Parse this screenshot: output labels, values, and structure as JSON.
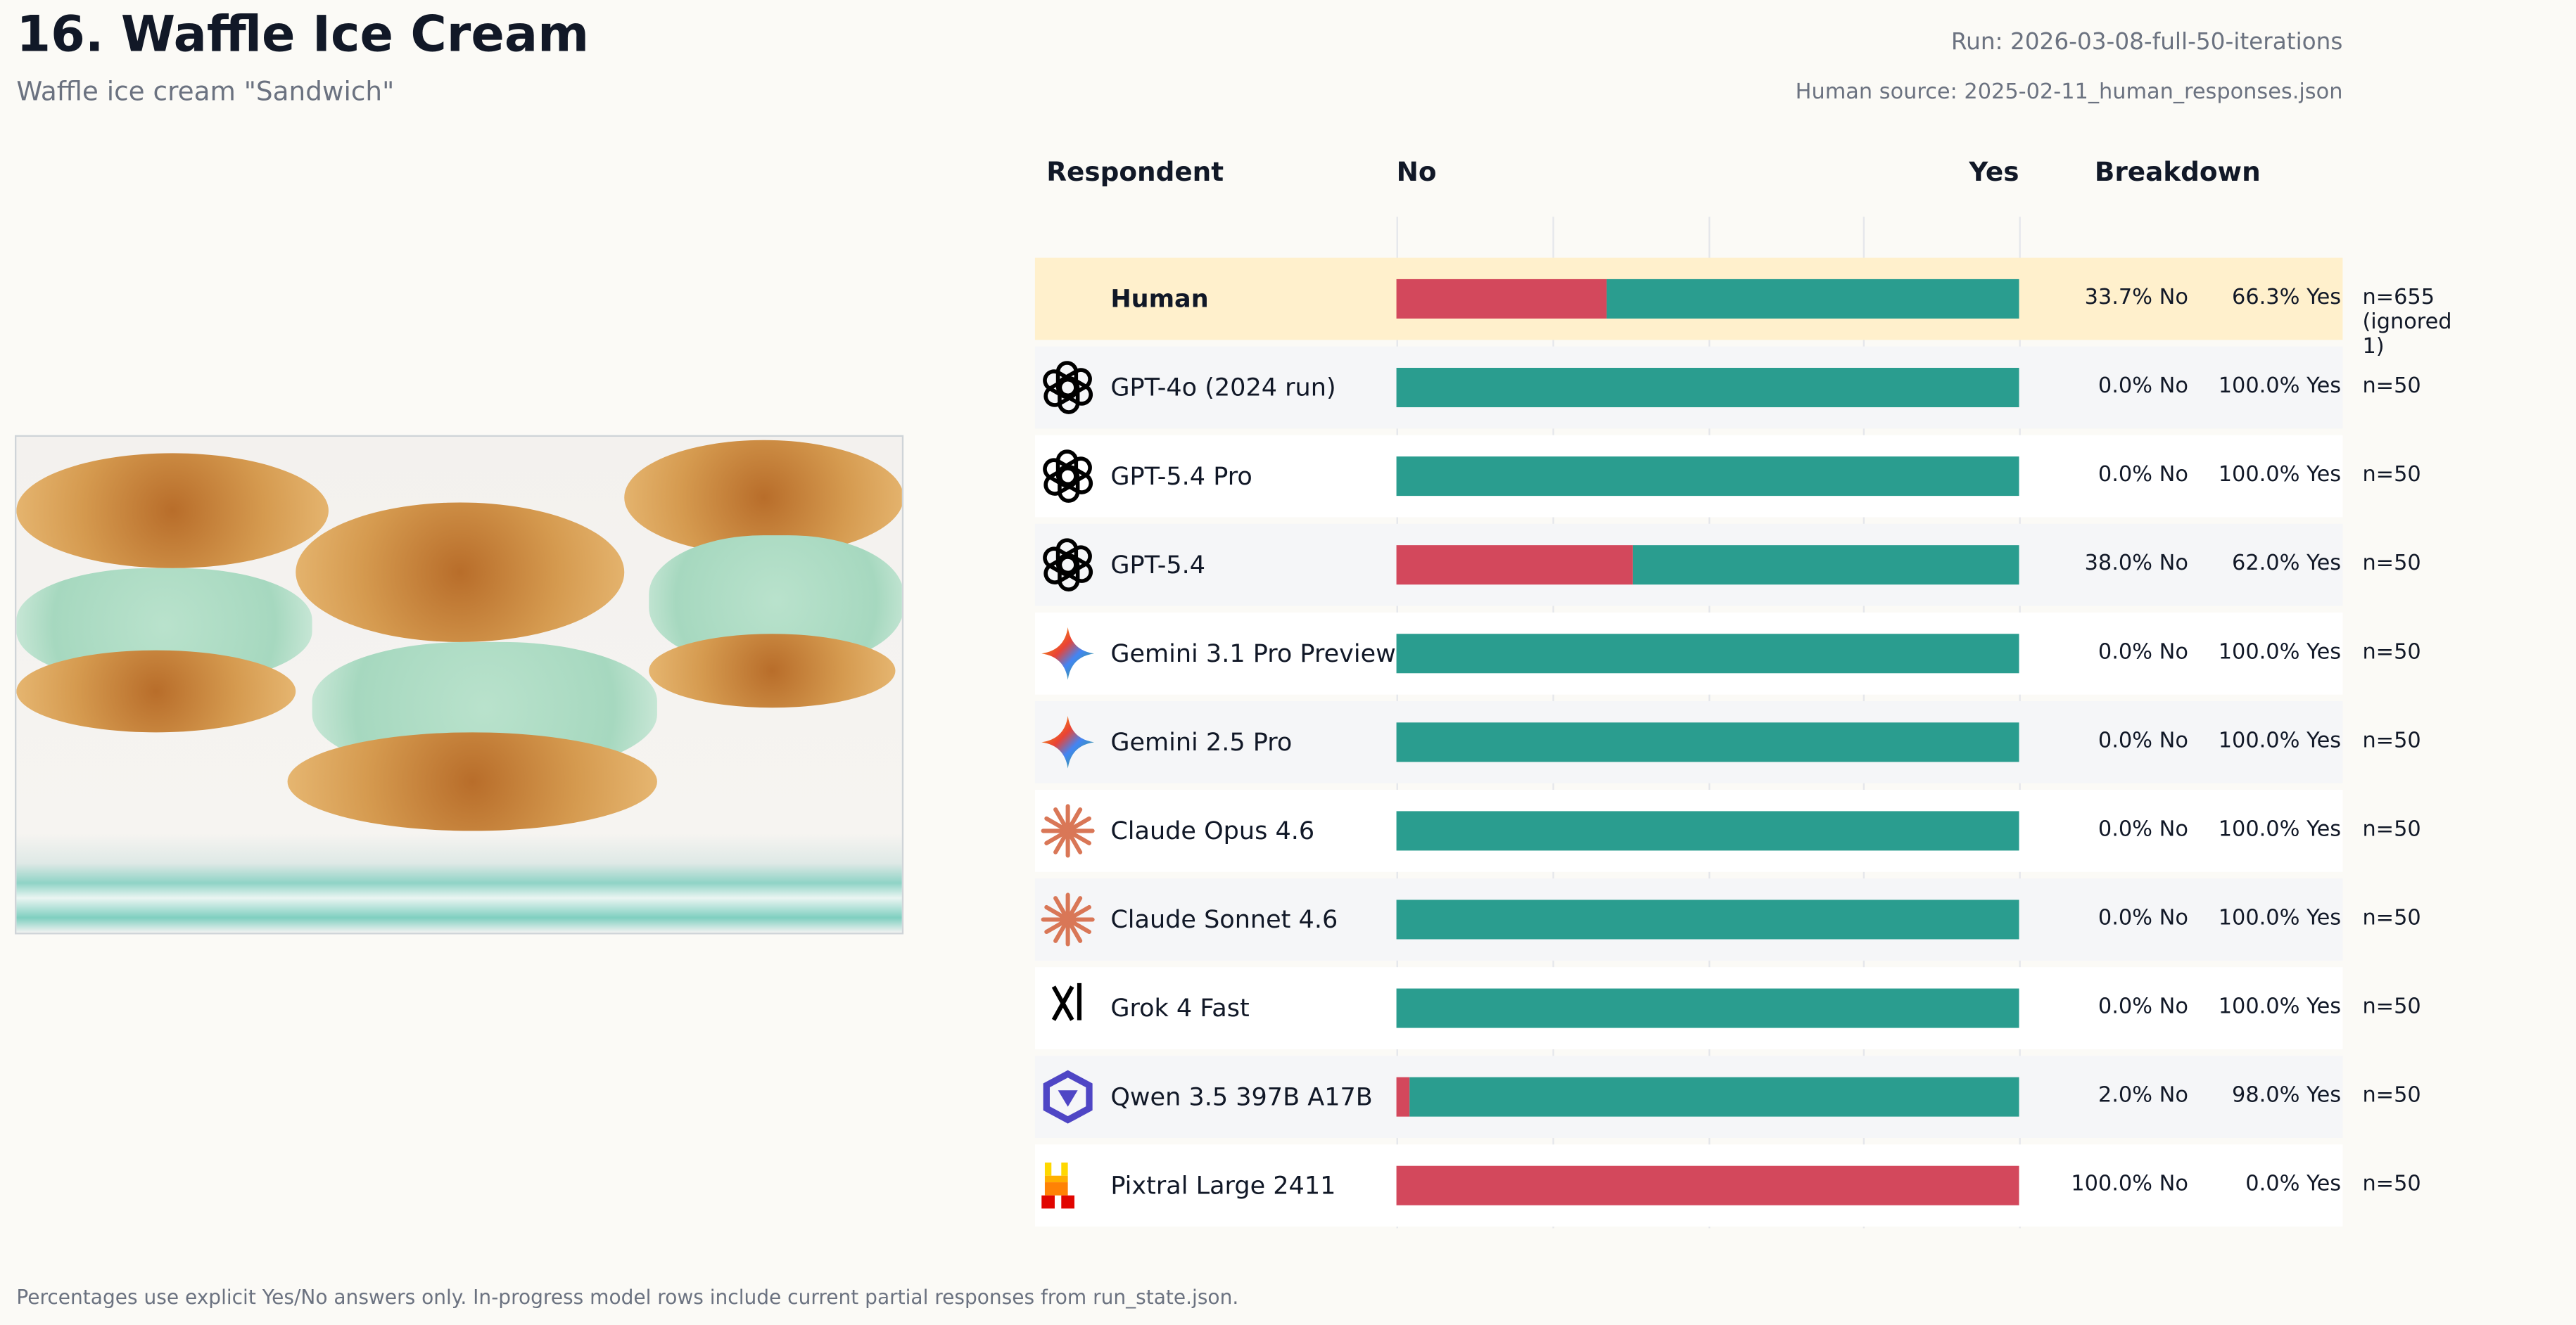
{
  "header": {
    "title": "16. Waffle Ice Cream",
    "subtitle": "Waffle ice cream  \"Sandwich\"",
    "run": "Run: 2026-03-08-full-50-iterations",
    "human_source": "Human source: 2025-02-11_human_responses.json"
  },
  "columns": {
    "respondent": "Respondent",
    "no": "No",
    "yes": "Yes",
    "breakdown": "Breakdown"
  },
  "colors": {
    "no": "#d3485c",
    "yes": "#2a9d8f",
    "human_row": "#fff0cc"
  },
  "chart_data": {
    "type": "bar",
    "stacked": true,
    "orientation": "horizontal",
    "xlim": [
      0,
      100
    ],
    "grid": true,
    "categories": [
      "Human",
      "GPT-4o (2024 run)",
      "GPT-5.4 Pro",
      "GPT-5.4",
      "Gemini 3.1 Pro Preview",
      "Gemini 2.5 Pro",
      "Claude Opus 4.6",
      "Claude Sonnet 4.6",
      "Grok 4 Fast",
      "Qwen 3.5 397B A17B",
      "Pixtral Large 2411"
    ],
    "series": [
      {
        "name": "No",
        "values": [
          33.7,
          0,
          0,
          38,
          0,
          0,
          0,
          0,
          0,
          2,
          100
        ]
      },
      {
        "name": "Yes",
        "values": [
          66.3,
          100,
          100,
          62,
          100,
          100,
          100,
          100,
          100,
          98,
          0
        ]
      }
    ]
  },
  "rows": [
    {
      "name": "Human",
      "icon": "none",
      "no": "33.7% No",
      "yes": "66.3% Yes",
      "n": "n=655 (ignored 1)"
    },
    {
      "name": "GPT-4o (2024 run)",
      "icon": "openai-icon",
      "no": "0.0% No",
      "yes": "100.0% Yes",
      "n": "n=50"
    },
    {
      "name": "GPT-5.4 Pro",
      "icon": "openai-icon",
      "no": "0.0% No",
      "yes": "100.0% Yes",
      "n": "n=50"
    },
    {
      "name": "GPT-5.4",
      "icon": "openai-icon",
      "no": "38.0% No",
      "yes": "62.0% Yes",
      "n": "n=50"
    },
    {
      "name": "Gemini 3.1 Pro Preview",
      "icon": "gemini-icon",
      "no": "0.0% No",
      "yes": "100.0% Yes",
      "n": "n=50"
    },
    {
      "name": "Gemini 2.5 Pro",
      "icon": "gemini-icon",
      "no": "0.0% No",
      "yes": "100.0% Yes",
      "n": "n=50"
    },
    {
      "name": "Claude Opus 4.6",
      "icon": "claude-icon",
      "no": "0.0% No",
      "yes": "100.0% Yes",
      "n": "n=50"
    },
    {
      "name": "Claude Sonnet 4.6",
      "icon": "claude-icon",
      "no": "0.0% No",
      "yes": "100.0% Yes",
      "n": "n=50"
    },
    {
      "name": "Grok 4 Fast",
      "icon": "grok-icon",
      "no": "0.0% No",
      "yes": "100.0% Yes",
      "n": "n=50"
    },
    {
      "name": "Qwen 3.5 397B A17B",
      "icon": "qwen-icon",
      "no": "2.0% No",
      "yes": "98.0% Yes",
      "n": "n=50"
    },
    {
      "name": "Pixtral Large 2411",
      "icon": "mistral-icon",
      "no": "100.0% No",
      "yes": "0.0% Yes",
      "n": "n=50"
    }
  ],
  "grok_logo_text": "GROK",
  "footer": "Percentages use explicit Yes/No answers only. In-progress model rows include current partial responses from run_state.json."
}
